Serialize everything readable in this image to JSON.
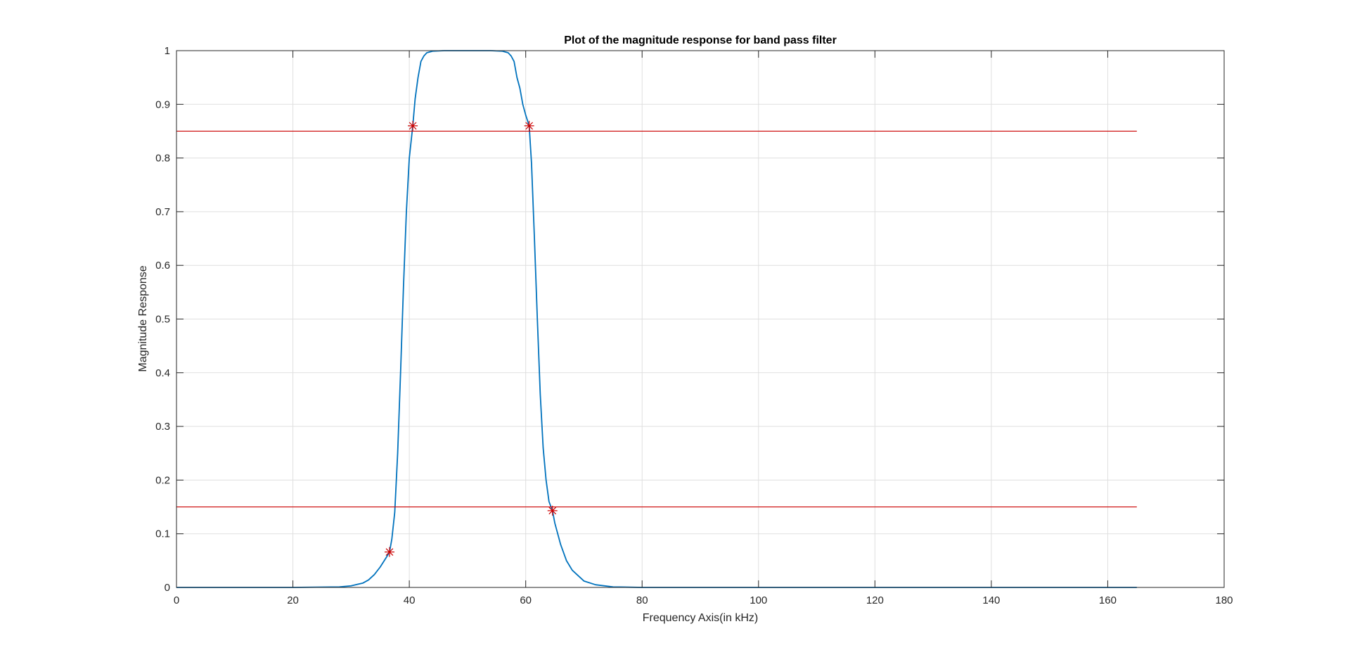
{
  "chart_data": {
    "type": "line",
    "title": "Plot of the magnitude response for band pass filter",
    "xlabel": "Frequency Axis(in kHz)",
    "ylabel": "Magnitude Response",
    "xlim": [
      0,
      180
    ],
    "ylim": [
      0,
      1
    ],
    "xticks": [
      0,
      20,
      40,
      60,
      80,
      100,
      120,
      140,
      160,
      180
    ],
    "yticks": [
      0,
      0.1,
      0.2,
      0.3,
      0.4,
      0.5,
      0.6,
      0.7,
      0.8,
      0.9,
      1
    ],
    "xtick_labels": [
      "0",
      "20",
      "40",
      "60",
      "80",
      "100",
      "120",
      "140",
      "160",
      "180"
    ],
    "ytick_labels": [
      "0",
      "0.1",
      "0.2",
      "0.3",
      "0.4",
      "0.5",
      "0.6",
      "0.7",
      "0.8",
      "0.9",
      "1"
    ],
    "grid": true,
    "colors": {
      "response": "#0072BD",
      "reference": "#CC0000",
      "axis": "#262626",
      "grid": "#DFDFDF"
    },
    "series": [
      {
        "values_x": [
          0,
          20,
          28,
          30,
          32,
          33,
          34,
          35,
          36,
          36.6,
          37,
          37.5,
          38,
          38.5,
          39,
          39.5,
          40,
          40.6,
          41,
          41.5,
          42,
          42.5,
          43,
          44,
          46,
          50,
          54,
          56,
          57,
          57.5,
          58,
          58.5,
          59,
          59.5,
          60,
          60.6,
          61,
          61.5,
          62,
          62.5,
          63,
          63.5,
          64,
          64.6,
          65,
          66,
          67,
          68,
          70,
          72,
          75,
          80,
          90,
          165
        ],
        "values_y": [
          0,
          0,
          0.001,
          0.003,
          0.008,
          0.014,
          0.024,
          0.038,
          0.055,
          0.066,
          0.09,
          0.14,
          0.25,
          0.4,
          0.56,
          0.7,
          0.8,
          0.86,
          0.91,
          0.95,
          0.98,
          0.99,
          0.996,
          0.999,
          1,
          1,
          1,
          0.999,
          0.996,
          0.99,
          0.98,
          0.95,
          0.93,
          0.9,
          0.88,
          0.86,
          0.79,
          0.65,
          0.5,
          0.36,
          0.26,
          0.2,
          0.16,
          0.143,
          0.12,
          0.08,
          0.05,
          0.032,
          0.012,
          0.005,
          0.001,
          0,
          0,
          0
        ]
      },
      {
        "values_x": [
          0,
          165
        ],
        "values_y": [
          0.85,
          0.85
        ]
      },
      {
        "values_x": [
          0,
          165
        ],
        "values_y": [
          0.15,
          0.15
        ]
      }
    ],
    "markers": {
      "x": [
        36.6,
        40.6,
        60.6,
        64.6
      ],
      "y": [
        0.066,
        0.86,
        0.86,
        0.143
      ]
    }
  }
}
